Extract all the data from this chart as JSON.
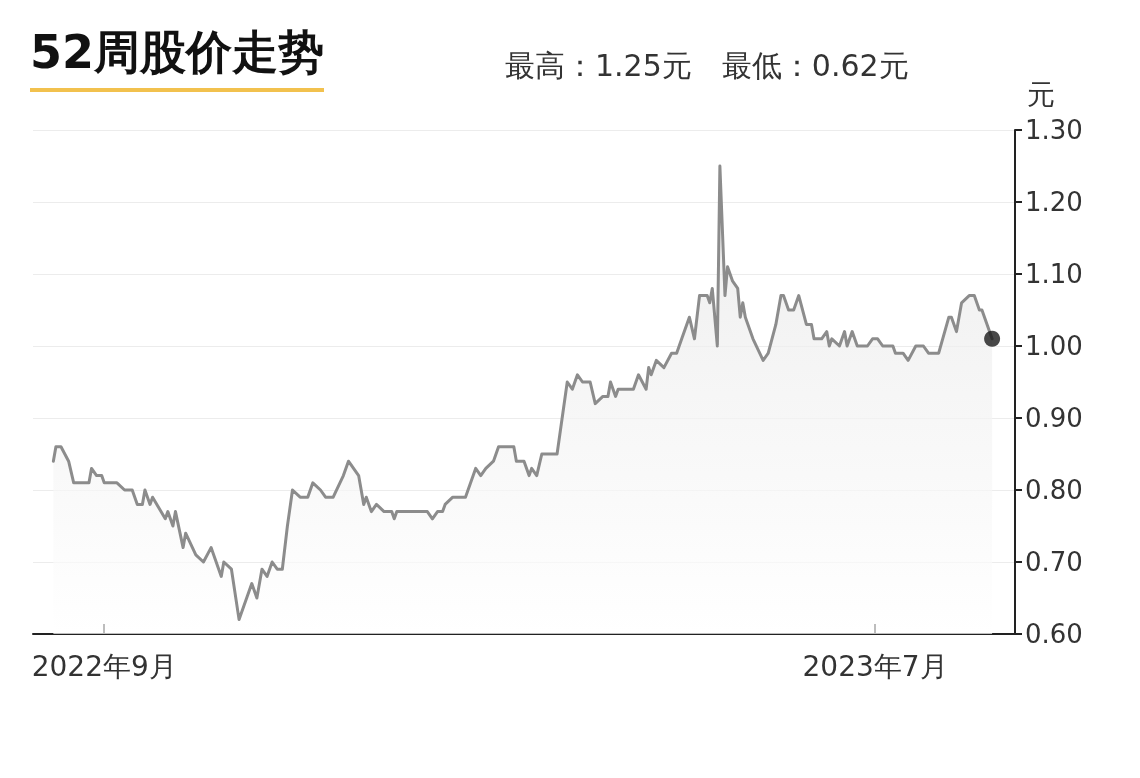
{
  "chart_data": {
    "type": "area",
    "title": "52周股价走势",
    "subtitle": "最高：1.25元　最低：0.62元",
    "ylabel": "元",
    "xlim": [
      "2022-08-04",
      "2023-08-25"
    ],
    "xticks": [
      {
        "value": "2022-09-01",
        "label": "2022年9月"
      },
      {
        "value": "2023-07-01",
        "label": "2023年7月"
      }
    ],
    "ylim": [
      0.6,
      1.3
    ],
    "yticks": [
      {
        "value": 0.6,
        "label": "0.60"
      },
      {
        "value": 0.7,
        "label": "0.70"
      },
      {
        "value": 0.8,
        "label": "0.80"
      },
      {
        "value": 0.9,
        "label": "0.90"
      },
      {
        "value": 1.0,
        "label": "1.00"
      },
      {
        "value": 1.1,
        "label": "1.10"
      },
      {
        "value": 1.2,
        "label": "1.20"
      },
      {
        "value": 1.3,
        "label": "1.30"
      }
    ],
    "grid": "y",
    "marker": "none",
    "line_style": "solid",
    "series": [
      {
        "color": "#8c8c8c",
        "x": [
          "2022-08-12",
          "2022-08-13",
          "2022-08-15",
          "2022-08-18",
          "2022-08-20",
          "2022-08-26",
          "2022-08-27",
          "2022-08-29",
          "2022-08-31",
          "2022-09-01",
          "2022-09-06",
          "2022-09-09",
          "2022-09-12",
          "2022-09-14",
          "2022-09-16",
          "2022-09-17",
          "2022-09-19",
          "2022-09-20",
          "2022-09-25",
          "2022-09-26",
          "2022-09-28",
          "2022-09-29",
          "2022-10-02",
          "2022-10-03",
          "2022-10-07",
          "2022-10-10",
          "2022-10-13",
          "2022-10-17",
          "2022-10-18",
          "2022-10-21",
          "2022-10-24",
          "2022-10-29",
          "2022-10-31",
          "2022-11-02",
          "2022-11-04",
          "2022-11-06",
          "2022-11-08",
          "2022-11-10",
          "2022-11-12",
          "2022-11-14",
          "2022-11-17",
          "2022-11-20",
          "2022-11-22",
          "2022-11-25",
          "2022-11-27",
          "2022-11-30",
          "2022-12-04",
          "2022-12-06",
          "2022-12-10",
          "2022-12-12",
          "2022-12-13",
          "2022-12-15",
          "2022-12-17",
          "2022-12-20",
          "2022-12-23",
          "2022-12-24",
          "2022-12-25",
          "2023-01-06",
          "2023-01-08",
          "2023-01-10",
          "2023-01-12",
          "2023-01-13",
          "2023-01-16",
          "2023-01-21",
          "2023-01-25",
          "2023-01-27",
          "2023-01-29",
          "2023-02-01",
          "2023-02-03",
          "2023-02-09",
          "2023-02-10",
          "2023-02-13",
          "2023-02-15",
          "2023-02-16",
          "2023-02-18",
          "2023-02-20",
          "2023-02-26",
          "2023-03-02",
          "2023-03-04",
          "2023-03-06",
          "2023-03-08",
          "2023-03-11",
          "2023-03-13",
          "2023-03-16",
          "2023-03-18",
          "2023-03-19",
          "2023-03-21",
          "2023-03-22",
          "2023-03-28",
          "2023-03-30",
          "2023-04-02",
          "2023-04-03",
          "2023-04-04",
          "2023-04-06",
          "2023-04-09",
          "2023-04-12",
          "2023-04-14",
          "2023-04-16",
          "2023-04-19",
          "2023-04-21",
          "2023-04-23",
          "2023-04-26",
          "2023-04-27",
          "2023-04-28",
          "2023-04-30",
          "2023-05-01",
          "2023-05-03",
          "2023-05-04",
          "2023-05-06",
          "2023-05-08",
          "2023-05-09",
          "2023-05-10",
          "2023-05-11",
          "2023-05-14",
          "2023-05-18",
          "2023-05-20",
          "2023-05-23",
          "2023-05-25",
          "2023-05-26",
          "2023-05-28",
          "2023-05-30",
          "2023-06-01",
          "2023-06-04",
          "2023-06-06",
          "2023-06-07",
          "2023-06-10",
          "2023-06-12",
          "2023-06-13",
          "2023-06-14",
          "2023-06-17",
          "2023-06-19",
          "2023-06-20",
          "2023-06-22",
          "2023-06-24",
          "2023-06-28",
          "2023-06-30",
          "2023-07-02",
          "2023-07-04",
          "2023-07-08",
          "2023-07-09",
          "2023-07-12",
          "2023-07-14",
          "2023-07-17",
          "2023-07-20",
          "2023-07-22",
          "2023-07-26",
          "2023-07-30",
          "2023-07-31",
          "2023-08-02",
          "2023-08-04",
          "2023-08-07",
          "2023-08-09",
          "2023-08-11",
          "2023-08-12",
          "2023-08-16"
        ],
        "values": [
          0.84,
          0.86,
          0.86,
          0.84,
          0.81,
          0.81,
          0.83,
          0.82,
          0.82,
          0.81,
          0.81,
          0.8,
          0.8,
          0.78,
          0.78,
          0.8,
          0.78,
          0.79,
          0.76,
          0.77,
          0.75,
          0.77,
          0.72,
          0.74,
          0.71,
          0.7,
          0.72,
          0.68,
          0.7,
          0.69,
          0.62,
          0.67,
          0.65,
          0.69,
          0.68,
          0.7,
          0.69,
          0.69,
          0.75,
          0.8,
          0.79,
          0.79,
          0.81,
          0.8,
          0.79,
          0.79,
          0.82,
          0.84,
          0.82,
          0.78,
          0.79,
          0.77,
          0.78,
          0.77,
          0.77,
          0.76,
          0.77,
          0.77,
          0.76,
          0.77,
          0.77,
          0.78,
          0.79,
          0.79,
          0.83,
          0.82,
          0.83,
          0.84,
          0.86,
          0.86,
          0.84,
          0.84,
          0.82,
          0.83,
          0.82,
          0.85,
          0.85,
          0.95,
          0.94,
          0.96,
          0.95,
          0.95,
          0.92,
          0.93,
          0.93,
          0.95,
          0.93,
          0.94,
          0.94,
          0.96,
          0.94,
          0.97,
          0.96,
          0.98,
          0.97,
          0.99,
          0.99,
          1.01,
          1.04,
          1.01,
          1.07,
          1.07,
          1.06,
          1.08,
          1.0,
          1.25,
          1.07,
          1.11,
          1.09,
          1.08,
          1.04,
          1.06,
          1.04,
          1.01,
          0.98,
          0.99,
          1.03,
          1.07,
          1.07,
          1.05,
          1.05,
          1.07,
          1.03,
          1.03,
          1.01,
          1.01,
          1.02,
          1.0,
          1.01,
          1.0,
          1.02,
          1.0,
          1.02,
          1.0,
          1.0,
          1.01,
          1.01,
          1.0,
          1.0,
          0.99,
          0.99,
          0.98,
          1.0,
          1.0,
          0.99,
          0.99,
          1.04,
          1.04,
          1.02,
          1.06,
          1.07,
          1.07,
          1.05,
          1.05,
          1.01
        ]
      },
      {
        "type": "scatter",
        "marker": "circle",
        "color": "#1a1a1a",
        "x": [
          "2023-08-16"
        ],
        "values": [
          1.01
        ]
      }
    ]
  }
}
